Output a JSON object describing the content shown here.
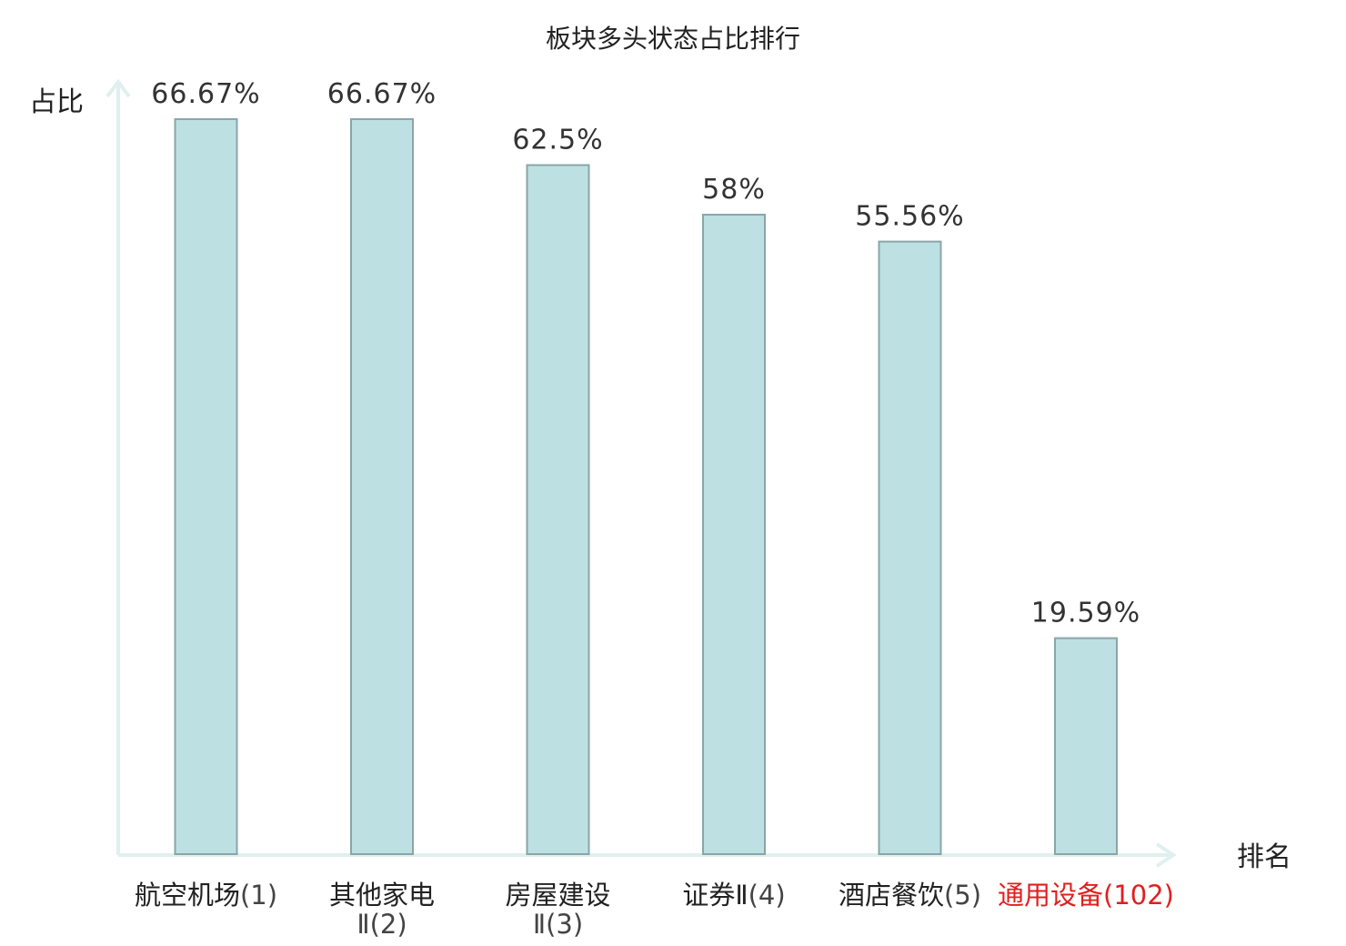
{
  "chart_data": {
    "type": "bar",
    "title": "板块多头状态占比排行",
    "ylabel": "占比",
    "xlabel": "排名",
    "ylim": [
      0,
      70
    ],
    "grid": false,
    "legend": "none",
    "categories": [
      {
        "label": "航空机场",
        "rank": "(1)",
        "highlight": false
      },
      {
        "label": "其他家电",
        "label_line2": "Ⅱ",
        "rank": "(2)",
        "highlight": false
      },
      {
        "label": "房屋建设",
        "label_line2": "Ⅱ",
        "rank": "(3)",
        "highlight": false
      },
      {
        "label": "证券Ⅱ",
        "rank": "(4)",
        "highlight": false
      },
      {
        "label": "酒店餐饮",
        "rank": "(5)",
        "highlight": false
      },
      {
        "label": "通用设备",
        "rank": "(102)",
        "highlight": true
      }
    ],
    "values": [
      66.67,
      66.67,
      62.5,
      58,
      55.56,
      19.59
    ],
    "value_labels": [
      "66.67%",
      "66.67%",
      "62.5%",
      "58%",
      "55.56%",
      "19.59%"
    ],
    "colors": {
      "bar_fill": "#bde0e3",
      "bar_stroke": "#8aa5a8",
      "axis": "#dff0ee",
      "highlight_text": "#e02020",
      "normal_text": "#222222",
      "rank_text": "#444444"
    }
  }
}
